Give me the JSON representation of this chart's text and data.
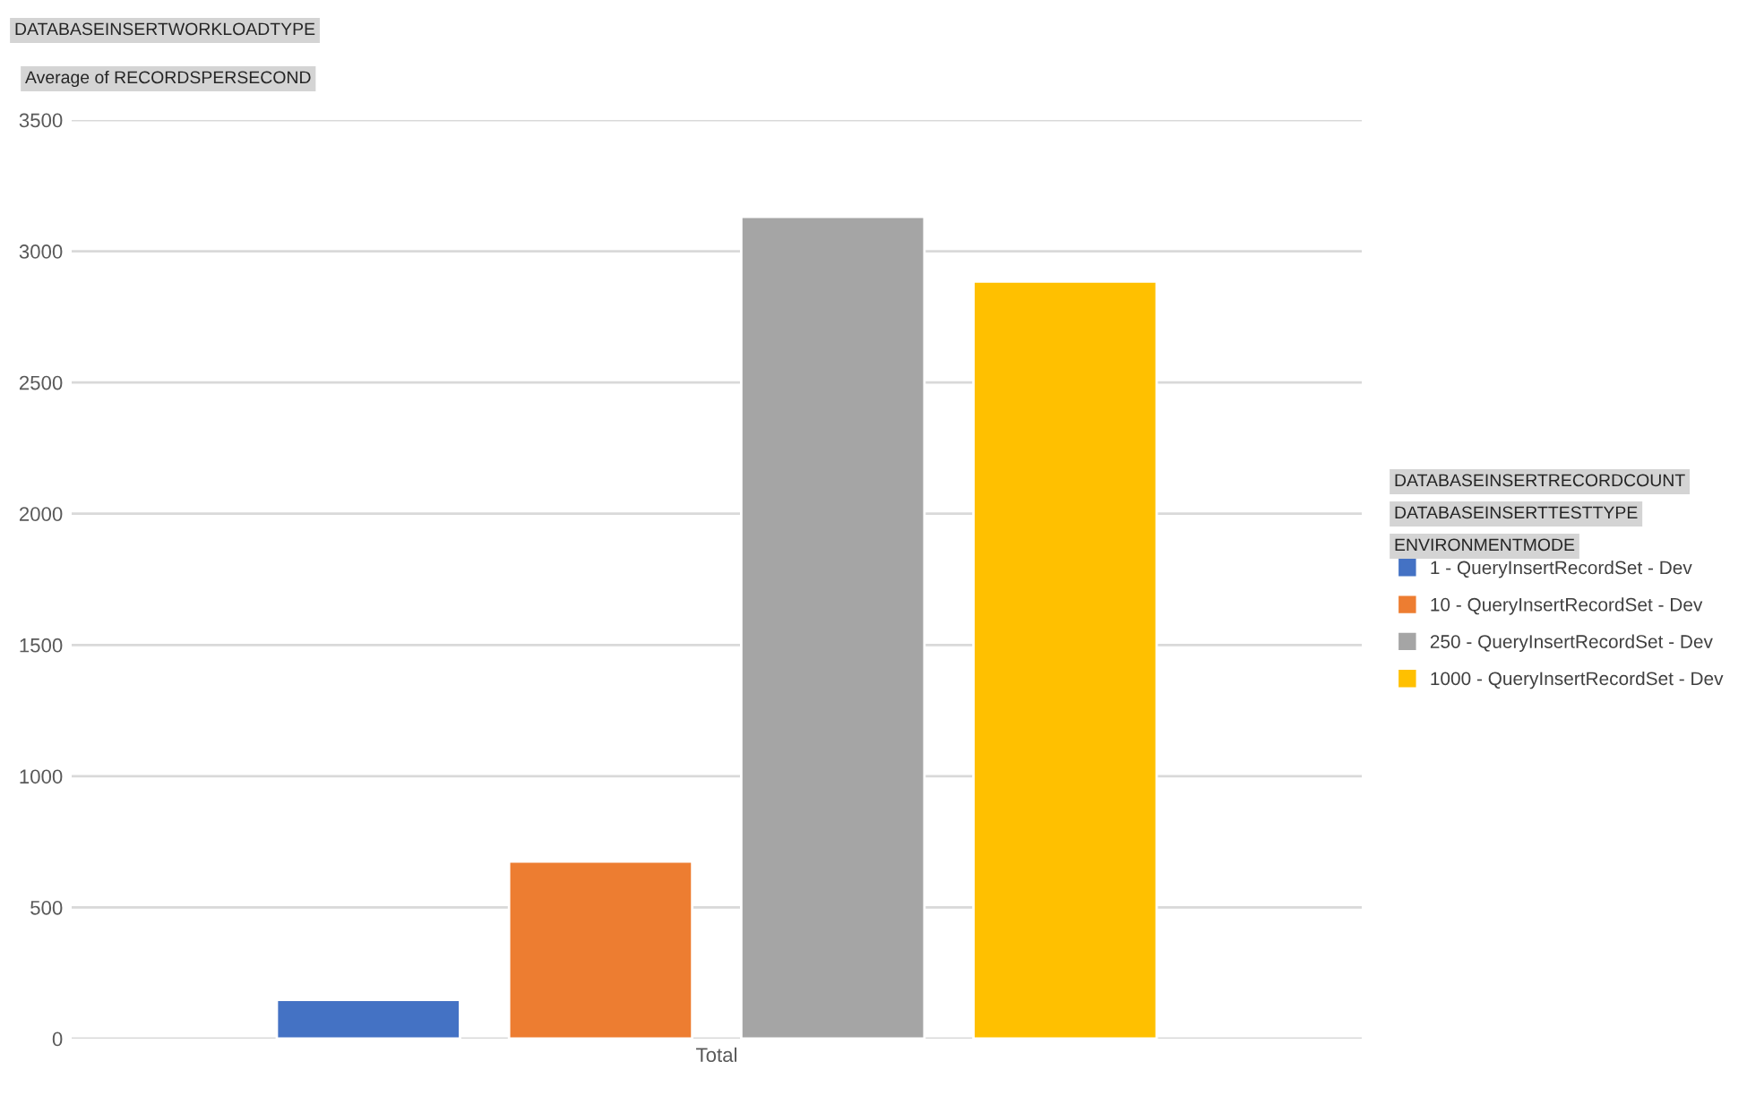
{
  "chart_data": {
    "type": "bar",
    "categories": [
      "Total"
    ],
    "series": [
      {
        "name": "1 - QueryInsertRecordSet - Dev",
        "color": "#4472c4",
        "values": [
          148
        ]
      },
      {
        "name": "10 - QueryInsertRecordSet - Dev",
        "color": "#ed7d31",
        "values": [
          675
        ]
      },
      {
        "name": "250 - QueryInsertRecordSet - Dev",
        "color": "#a5a5a5",
        "values": [
          3131
        ]
      },
      {
        "name": "1000 - QueryInsertRecordSet - Dev",
        "color": "#ffc000",
        "values": [
          2885
        ]
      }
    ],
    "annotations": [
      "DATABASEINSERTWORKLOADTYPE",
      "Average of RECORDSPERSECOND",
      "DATABASEINSERTRECORDCOUNT",
      "DATABASEINSERTTESTTYPE",
      "ENVIRONMENTMODE"
    ],
    "ylim": [
      0,
      3500
    ],
    "yticks": [
      0,
      500,
      1000,
      1500,
      2000,
      2500,
      3000,
      3500
    ],
    "grid": "y",
    "legend": "right"
  }
}
